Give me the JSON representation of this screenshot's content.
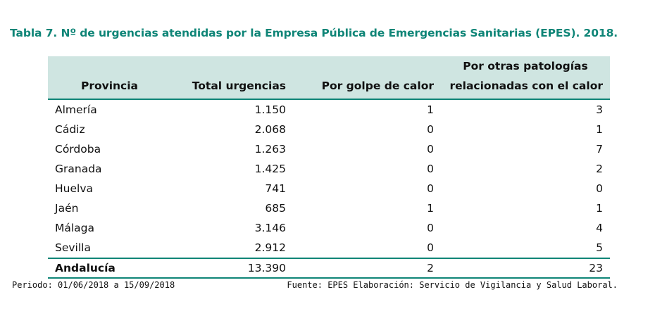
{
  "title": "Tabla 7. Nº de urgencias atendidas por la Empresa Pública de Emergencias Sanitarias (EPES). 2018.",
  "table": {
    "headers": [
      "Provincia",
      "Total urgencias",
      "Por golpe de calor",
      "Por otras patologías relacionadas con el calor"
    ],
    "header_line1_col3": "Por otras patologías",
    "header_line2_col3": "relacionadas con el calor",
    "rows": [
      [
        "Almería",
        "1.150",
        "1",
        "3"
      ],
      [
        "Cádiz",
        "2.068",
        "0",
        "1"
      ],
      [
        "Córdoba",
        "1.263",
        "0",
        "7"
      ],
      [
        "Granada",
        "1.425",
        "0",
        "2"
      ],
      [
        "Huelva",
        "741",
        "0",
        "0"
      ],
      [
        "Jaén",
        "685",
        "1",
        "1"
      ],
      [
        "Málaga",
        "3.146",
        "0",
        "4"
      ],
      [
        "Sevilla",
        "2.912",
        "0",
        "5"
      ]
    ],
    "total": [
      "Andalucía",
      "13.390",
      "2",
      "23"
    ]
  },
  "footer": {
    "period": "Periodo: 01/06/2018 a 15/09/2018",
    "source": "Fuente: EPES  Elaboración: Servicio de Vigilancia y Salud Laboral."
  },
  "colors": {
    "accent": "#0f8577",
    "header_bg": "#cfe5e1"
  }
}
